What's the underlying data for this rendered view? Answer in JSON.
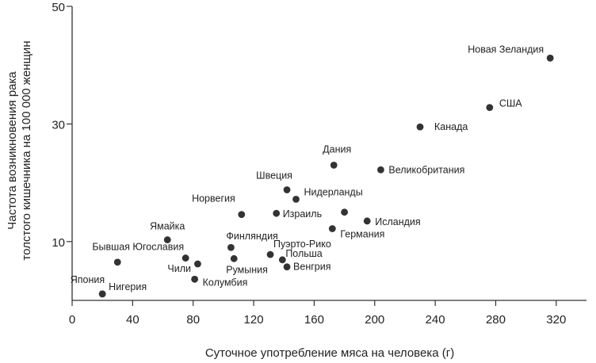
{
  "chart_data": {
    "type": "scatter",
    "title": "",
    "xlabel": "Суточное употребление мяса на человека (г)",
    "ylabel": "Частота возникновения рака толстого кишечника на 100 000 женщин",
    "ylabel_lines": [
      "Частота возникновения рака",
      "толстого кишечника на 100 000 женщин"
    ],
    "xlim": [
      0,
      340
    ],
    "ylim": [
      0,
      50
    ],
    "xticks": [
      0,
      40,
      80,
      120,
      160,
      200,
      240,
      280,
      320
    ],
    "yticks": [
      10,
      30,
      50
    ],
    "grid": false,
    "point_color": "#333333",
    "points": [
      {
        "label": "Новая Зеландия",
        "x": 316,
        "y": 41.2
      },
      {
        "label": "США",
        "x": 276,
        "y": 32.8
      },
      {
        "label": "Канада",
        "x": 230,
        "y": 29.5
      },
      {
        "label": "Дания",
        "x": 173,
        "y": 23.0
      },
      {
        "label": "Великобритания",
        "x": 204,
        "y": 22.2
      },
      {
        "label": "Швеция",
        "x": 142,
        "y": 18.8
      },
      {
        "label": "Нидерланды",
        "x": 148,
        "y": 17.2
      },
      {
        "label": "Норвегия",
        "x": 112,
        "y": 14.6
      },
      {
        "label": "Израиль",
        "x": 135,
        "y": 14.8
      },
      {
        "label": "",
        "x": 180,
        "y": 15.0
      },
      {
        "label": "Исландия",
        "x": 195,
        "y": 13.5
      },
      {
        "label": "Германия",
        "x": 172,
        "y": 12.2
      },
      {
        "label": "Ямайка",
        "x": 63,
        "y": 10.3
      },
      {
        "label": "Финляндия",
        "x": 105,
        "y": 9.0
      },
      {
        "label": "Бывшая Югославия",
        "x": 75,
        "y": 7.2
      },
      {
        "label": "Пуэрто-Рико",
        "x": 131,
        "y": 7.8
      },
      {
        "label": "Чили",
        "x": 83,
        "y": 6.2
      },
      {
        "label": "",
        "x": 30,
        "y": 6.5
      },
      {
        "label": "Румыния",
        "x": 107,
        "y": 7.1
      },
      {
        "label": "Польша",
        "x": 139,
        "y": 6.9
      },
      {
        "label": "Венгрия",
        "x": 142,
        "y": 5.7
      },
      {
        "label": "Колумбия",
        "x": 81,
        "y": 3.6
      },
      {
        "label": "Япония",
        "x": 20,
        "y": 1.1
      },
      {
        "label": "Нигерия",
        "x": 20,
        "y": 1.1
      }
    ]
  }
}
